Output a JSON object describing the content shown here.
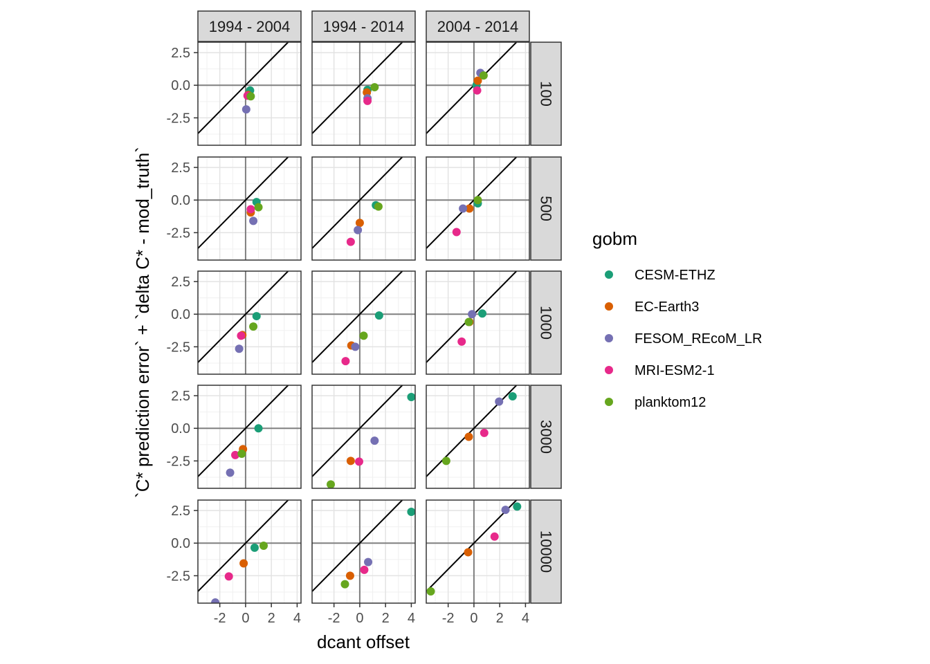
{
  "chart_data": {
    "type": "scatter",
    "facet_cols": [
      "1994 - 2004",
      "1994 - 2014",
      "2004 - 2014"
    ],
    "facet_rows": [
      "100",
      "500",
      "1000",
      "3000",
      "10000"
    ],
    "xlabel": "dcant offset",
    "ylabel": "`C* prediction error` + `delta C* - mod_truth`",
    "xlim": [
      -3.7,
      4.3
    ],
    "ylim": [
      -4.6,
      3.3
    ],
    "x_ticks": [
      -2,
      0,
      2,
      4
    ],
    "x_tick_labels": [
      "-2",
      "0",
      "2",
      "4"
    ],
    "y_ticks": [
      2.5,
      0.0,
      -2.5
    ],
    "y_tick_labels": [
      "2.5",
      "0.0",
      "-2.5"
    ],
    "reference_line": "y = x",
    "grid": true,
    "legend": {
      "title": "gobm",
      "position": "right",
      "entries": [
        {
          "name": "CESM-ETHZ",
          "color": "#1b9e77"
        },
        {
          "name": "EC-Earth3",
          "color": "#d95f02"
        },
        {
          "name": "FESOM_REcoM_LR",
          "color": "#7570b3"
        },
        {
          "name": "MRI-ESM2-1",
          "color": "#e7298a"
        },
        {
          "name": "planktom12",
          "color": "#66a61e"
        }
      ]
    },
    "points": [
      {
        "row": "100",
        "col": "1994 - 2004",
        "gobm": "CESM-ETHZ",
        "x": 0.35,
        "y": -0.4
      },
      {
        "row": "100",
        "col": "1994 - 2004",
        "gobm": "EC-Earth3",
        "x": 0.2,
        "y": -0.75
      },
      {
        "row": "100",
        "col": "1994 - 2004",
        "gobm": "FESOM_REcoM_LR",
        "x": 0.05,
        "y": -1.85
      },
      {
        "row": "100",
        "col": "1994 - 2004",
        "gobm": "MRI-ESM2-1",
        "x": 0.15,
        "y": -0.8
      },
      {
        "row": "100",
        "col": "1994 - 2004",
        "gobm": "planktom12",
        "x": 0.4,
        "y": -0.85
      },
      {
        "row": "100",
        "col": "1994 - 2014",
        "gobm": "CESM-ETHZ",
        "x": 0.6,
        "y": -0.35
      },
      {
        "row": "100",
        "col": "1994 - 2014",
        "gobm": "EC-Earth3",
        "x": 0.55,
        "y": -0.55
      },
      {
        "row": "100",
        "col": "1994 - 2014",
        "gobm": "FESOM_REcoM_LR",
        "x": 0.6,
        "y": -1.0
      },
      {
        "row": "100",
        "col": "1994 - 2014",
        "gobm": "MRI-ESM2-1",
        "x": 0.6,
        "y": -1.2
      },
      {
        "row": "100",
        "col": "1994 - 2014",
        "gobm": "planktom12",
        "x": 1.15,
        "y": -0.15
      },
      {
        "row": "100",
        "col": "2004 - 2014",
        "gobm": "CESM-ETHZ",
        "x": 0.2,
        "y": 0.0
      },
      {
        "row": "100",
        "col": "2004 - 2014",
        "gobm": "EC-Earth3",
        "x": 0.3,
        "y": 0.35
      },
      {
        "row": "100",
        "col": "2004 - 2014",
        "gobm": "FESOM_REcoM_LR",
        "x": 0.5,
        "y": 0.95
      },
      {
        "row": "100",
        "col": "2004 - 2014",
        "gobm": "MRI-ESM2-1",
        "x": 0.25,
        "y": -0.4
      },
      {
        "row": "100",
        "col": "2004 - 2014",
        "gobm": "planktom12",
        "x": 0.75,
        "y": 0.75
      },
      {
        "row": "500",
        "col": "1994 - 2004",
        "gobm": "CESM-ETHZ",
        "x": 0.85,
        "y": -0.15
      },
      {
        "row": "500",
        "col": "1994 - 2004",
        "gobm": "EC-Earth3",
        "x": 0.4,
        "y": -0.95
      },
      {
        "row": "500",
        "col": "1994 - 2004",
        "gobm": "FESOM_REcoM_LR",
        "x": 0.6,
        "y": -1.6
      },
      {
        "row": "500",
        "col": "1994 - 2004",
        "gobm": "MRI-ESM2-1",
        "x": 0.4,
        "y": -0.7
      },
      {
        "row": "500",
        "col": "1994 - 2004",
        "gobm": "planktom12",
        "x": 1.0,
        "y": -0.55
      },
      {
        "row": "500",
        "col": "1994 - 2014",
        "gobm": "CESM-ETHZ",
        "x": 1.25,
        "y": -0.4
      },
      {
        "row": "500",
        "col": "1994 - 2014",
        "gobm": "EC-Earth3",
        "x": 0.0,
        "y": -1.75
      },
      {
        "row": "500",
        "col": "1994 - 2014",
        "gobm": "FESOM_REcoM_LR",
        "x": -0.15,
        "y": -2.3
      },
      {
        "row": "500",
        "col": "1994 - 2014",
        "gobm": "MRI-ESM2-1",
        "x": -0.7,
        "y": -3.2
      },
      {
        "row": "500",
        "col": "1994 - 2014",
        "gobm": "planktom12",
        "x": 1.45,
        "y": -0.5
      },
      {
        "row": "500",
        "col": "2004 - 2014",
        "gobm": "CESM-ETHZ",
        "x": 0.3,
        "y": -0.25
      },
      {
        "row": "500",
        "col": "2004 - 2014",
        "gobm": "EC-Earth3",
        "x": -0.35,
        "y": -0.65
      },
      {
        "row": "500",
        "col": "2004 - 2014",
        "gobm": "FESOM_REcoM_LR",
        "x": -0.85,
        "y": -0.65
      },
      {
        "row": "500",
        "col": "2004 - 2014",
        "gobm": "MRI-ESM2-1",
        "x": -1.35,
        "y": -2.45
      },
      {
        "row": "500",
        "col": "2004 - 2014",
        "gobm": "planktom12",
        "x": 0.3,
        "y": 0.0
      },
      {
        "row": "1000",
        "col": "1994 - 2004",
        "gobm": "CESM-ETHZ",
        "x": 0.85,
        "y": -0.15
      },
      {
        "row": "1000",
        "col": "1994 - 2004",
        "gobm": "EC-Earth3",
        "x": -0.25,
        "y": -1.6
      },
      {
        "row": "1000",
        "col": "1994 - 2004",
        "gobm": "FESOM_REcoM_LR",
        "x": -0.5,
        "y": -2.65
      },
      {
        "row": "1000",
        "col": "1994 - 2004",
        "gobm": "MRI-ESM2-1",
        "x": -0.35,
        "y": -1.65
      },
      {
        "row": "1000",
        "col": "1994 - 2004",
        "gobm": "planktom12",
        "x": 0.6,
        "y": -0.95
      },
      {
        "row": "1000",
        "col": "1994 - 2014",
        "gobm": "CESM-ETHZ",
        "x": 1.5,
        "y": -0.1
      },
      {
        "row": "1000",
        "col": "1994 - 2014",
        "gobm": "EC-Earth3",
        "x": -0.65,
        "y": -2.4
      },
      {
        "row": "1000",
        "col": "1994 - 2014",
        "gobm": "FESOM_REcoM_LR",
        "x": -0.35,
        "y": -2.5
      },
      {
        "row": "1000",
        "col": "1994 - 2014",
        "gobm": "MRI-ESM2-1",
        "x": -1.1,
        "y": -3.6
      },
      {
        "row": "1000",
        "col": "1994 - 2014",
        "gobm": "planktom12",
        "x": 0.3,
        "y": -1.65
      },
      {
        "row": "1000",
        "col": "2004 - 2014",
        "gobm": "CESM-ETHZ",
        "x": 0.65,
        "y": 0.05
      },
      {
        "row": "1000",
        "col": "2004 - 2014",
        "gobm": "EC-Earth3",
        "x": -0.35,
        "y": -0.6
      },
      {
        "row": "1000",
        "col": "2004 - 2014",
        "gobm": "FESOM_REcoM_LR",
        "x": -0.15,
        "y": 0.0
      },
      {
        "row": "1000",
        "col": "2004 - 2014",
        "gobm": "MRI-ESM2-1",
        "x": -0.95,
        "y": -2.1
      },
      {
        "row": "1000",
        "col": "2004 - 2014",
        "gobm": "planktom12",
        "x": -0.4,
        "y": -0.6
      },
      {
        "row": "3000",
        "col": "1994 - 2004",
        "gobm": "CESM-ETHZ",
        "x": 1.0,
        "y": 0.0
      },
      {
        "row": "3000",
        "col": "1994 - 2004",
        "gobm": "EC-Earth3",
        "x": -0.2,
        "y": -1.6
      },
      {
        "row": "3000",
        "col": "1994 - 2004",
        "gobm": "FESOM_REcoM_LR",
        "x": -1.2,
        "y": -3.4
      },
      {
        "row": "3000",
        "col": "1994 - 2004",
        "gobm": "MRI-ESM2-1",
        "x": -0.8,
        "y": -2.05
      },
      {
        "row": "3000",
        "col": "1994 - 2004",
        "gobm": "planktom12",
        "x": -0.3,
        "y": -1.95
      },
      {
        "row": "3000",
        "col": "1994 - 2014",
        "gobm": "CESM-ETHZ",
        "x": 4.0,
        "y": 2.4
      },
      {
        "row": "3000",
        "col": "1994 - 2014",
        "gobm": "EC-Earth3",
        "x": -0.7,
        "y": -2.5
      },
      {
        "row": "3000",
        "col": "1994 - 2014",
        "gobm": "FESOM_REcoM_LR",
        "x": 1.15,
        "y": -0.95
      },
      {
        "row": "3000",
        "col": "1994 - 2014",
        "gobm": "MRI-ESM2-1",
        "x": -0.05,
        "y": -2.55
      },
      {
        "row": "3000",
        "col": "1994 - 2014",
        "gobm": "planktom12",
        "x": -2.25,
        "y": -4.3
      },
      {
        "row": "3000",
        "col": "2004 - 2014",
        "gobm": "CESM-ETHZ",
        "x": 3.0,
        "y": 2.45
      },
      {
        "row": "3000",
        "col": "2004 - 2014",
        "gobm": "EC-Earth3",
        "x": -0.4,
        "y": -0.65
      },
      {
        "row": "3000",
        "col": "2004 - 2014",
        "gobm": "FESOM_REcoM_LR",
        "x": 1.95,
        "y": 2.05
      },
      {
        "row": "3000",
        "col": "2004 - 2014",
        "gobm": "MRI-ESM2-1",
        "x": 0.8,
        "y": -0.35
      },
      {
        "row": "3000",
        "col": "2004 - 2014",
        "gobm": "planktom12",
        "x": -2.15,
        "y": -2.5
      },
      {
        "row": "10000",
        "col": "1994 - 2004",
        "gobm": "CESM-ETHZ",
        "x": 0.7,
        "y": -0.35
      },
      {
        "row": "10000",
        "col": "1994 - 2004",
        "gobm": "EC-Earth3",
        "x": -0.15,
        "y": -1.55
      },
      {
        "row": "10000",
        "col": "1994 - 2004",
        "gobm": "FESOM_REcoM_LR",
        "x": -2.35,
        "y": -4.55
      },
      {
        "row": "10000",
        "col": "1994 - 2004",
        "gobm": "MRI-ESM2-1",
        "x": -1.3,
        "y": -2.55
      },
      {
        "row": "10000",
        "col": "1994 - 2004",
        "gobm": "planktom12",
        "x": 1.4,
        "y": -0.2
      },
      {
        "row": "10000",
        "col": "1994 - 2014",
        "gobm": "CESM-ETHZ",
        "x": 4.0,
        "y": 2.4
      },
      {
        "row": "10000",
        "col": "1994 - 2014",
        "gobm": "EC-Earth3",
        "x": -0.75,
        "y": -2.5
      },
      {
        "row": "10000",
        "col": "1994 - 2014",
        "gobm": "FESOM_REcoM_LR",
        "x": 0.65,
        "y": -1.45
      },
      {
        "row": "10000",
        "col": "1994 - 2014",
        "gobm": "MRI-ESM2-1",
        "x": 0.35,
        "y": -2.05
      },
      {
        "row": "10000",
        "col": "1994 - 2014",
        "gobm": "planktom12",
        "x": -1.15,
        "y": -3.15
      },
      {
        "row": "10000",
        "col": "2004 - 2014",
        "gobm": "CESM-ETHZ",
        "x": 3.35,
        "y": 2.8
      },
      {
        "row": "10000",
        "col": "2004 - 2014",
        "gobm": "EC-Earth3",
        "x": -0.45,
        "y": -0.7
      },
      {
        "row": "10000",
        "col": "2004 - 2014",
        "gobm": "FESOM_REcoM_LR",
        "x": 2.45,
        "y": 2.55
      },
      {
        "row": "10000",
        "col": "2004 - 2014",
        "gobm": "MRI-ESM2-1",
        "x": 1.6,
        "y": 0.5
      },
      {
        "row": "10000",
        "col": "2004 - 2014",
        "gobm": "planktom12",
        "x": -3.35,
        "y": -3.7
      }
    ]
  }
}
